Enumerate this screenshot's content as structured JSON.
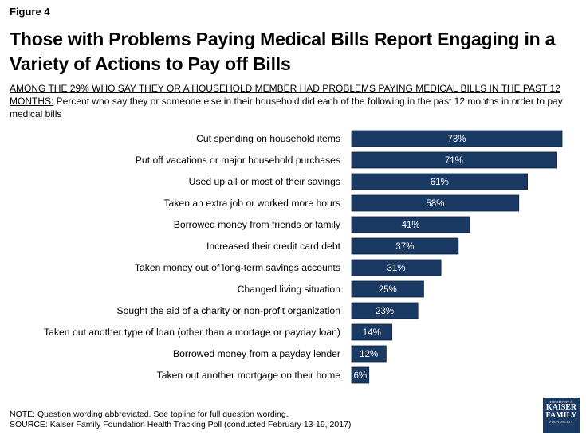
{
  "figure_label": "Figure 4",
  "title": "Those with Problems Paying Medical Bills Report Engaging in a Variety of Actions to Pay off Bills",
  "subtitle": {
    "lead": "AMONG THE 29% WHO SAY THEY OR A HOUSEHOLD MEMBER HAD PROBLEMS PAYING MEDICAL BILLS IN THE PAST 12 MONTHS:",
    "rest": " Percent who say they or someone else in their household did each of the following in the past 12 months in order to pay medical bills"
  },
  "notes": {
    "note": "NOTE: Question wording abbreviated. See topline for full question wording.",
    "source": "SOURCE: Kaiser Family Foundation Health Tracking Poll (conducted February 13-19, 2017)"
  },
  "logo": {
    "line1": "THE HENRY J.",
    "line2": "KAISER",
    "line3": "FAMILY",
    "line4": "FOUNDATION"
  },
  "colors": {
    "bar": "#1a3a63",
    "bar_text": "#ffffff"
  },
  "chart_data": {
    "type": "bar",
    "orientation": "horizontal",
    "categories": [
      "Cut spending on household items",
      "Put off vacations or major household purchases",
      "Used up all or most of their savings",
      "Taken an extra job or worked more hours",
      "Borrowed money from friends or family",
      "Increased their credit card debt",
      "Taken money out of long-term savings accounts",
      "Changed living situation",
      "Sought the aid of a charity or non-profit organization",
      "Taken out another type of loan (other than a mortage or payday loan)",
      "Borrowed money from a payday lender",
      "Taken out another mortgage on their home"
    ],
    "values": [
      73,
      71,
      61,
      58,
      41,
      37,
      31,
      25,
      23,
      14,
      12,
      6
    ],
    "value_labels": [
      "73%",
      "71%",
      "61%",
      "58%",
      "41%",
      "37%",
      "31%",
      "25%",
      "23%",
      "14%",
      "12%",
      "6%"
    ],
    "xlim": [
      0,
      73
    ],
    "grid": false,
    "legend": "none"
  }
}
